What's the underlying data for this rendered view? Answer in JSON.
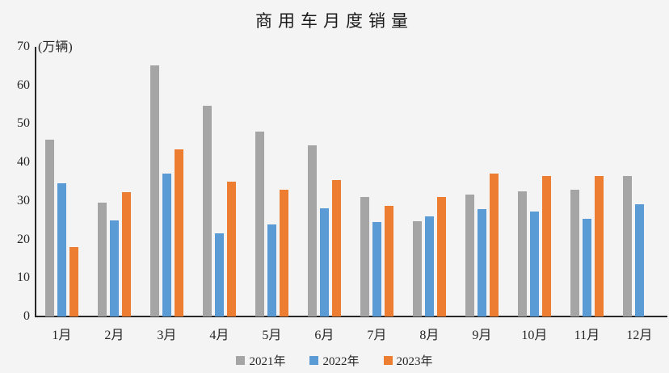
{
  "chart_data": {
    "type": "bar",
    "title": "商用车月度销量",
    "ylabel": "(万辆)",
    "xlabel": "",
    "categories": [
      "1月",
      "2月",
      "3月",
      "4月",
      "5月",
      "6月",
      "7月",
      "8月",
      "9月",
      "10月",
      "11月",
      "12月"
    ],
    "series": [
      {
        "name": "2021年",
        "color": "#A5A5A5",
        "values": [
          45.8,
          29.6,
          65.2,
          54.8,
          48.0,
          44.5,
          31.1,
          24.7,
          31.7,
          32.5,
          33.0,
          36.4
        ]
      },
      {
        "name": "2022年",
        "color": "#5B9BD5",
        "values": [
          34.5,
          24.9,
          37.0,
          21.5,
          23.9,
          28.0,
          24.5,
          25.9,
          27.8,
          27.2,
          25.4,
          29.1
        ]
      },
      {
        "name": "2023年",
        "color": "#ED7D31",
        "values": [
          18.0,
          32.3,
          43.4,
          34.9,
          32.9,
          35.4,
          28.7,
          31.0,
          37.2,
          36.5,
          36.4,
          null
        ]
      }
    ],
    "ylim": [
      0,
      70
    ],
    "yticks": [
      0,
      10,
      20,
      30,
      40,
      50,
      60,
      70
    ],
    "grid": false,
    "legend_position": "bottom",
    "background_color": "#f4f4f5",
    "axis_color": "#262626"
  }
}
